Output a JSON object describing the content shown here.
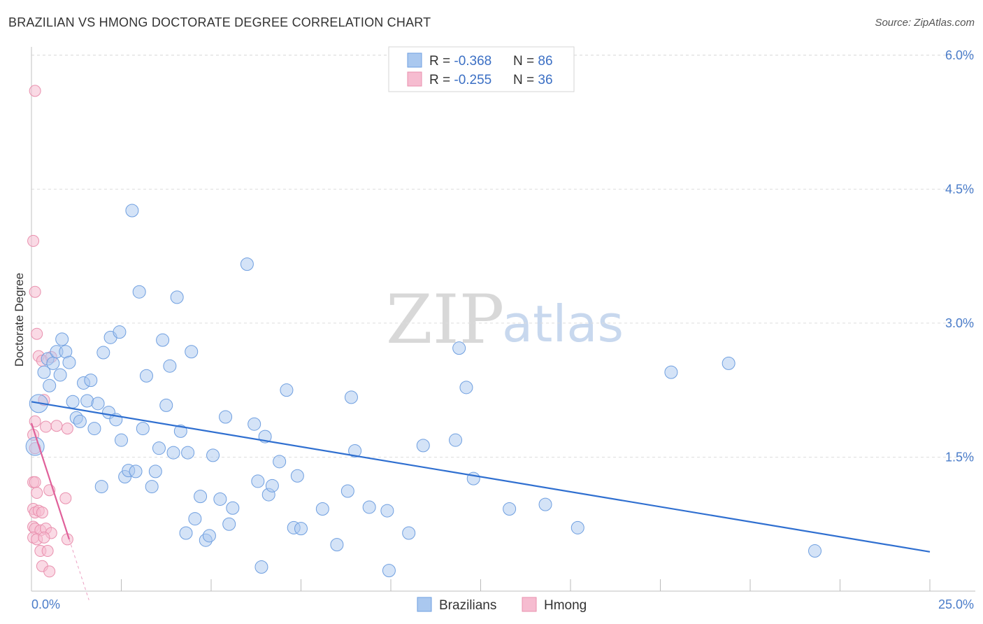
{
  "header": {
    "title": "BRAZILIAN VS HMONG DOCTORATE DEGREE CORRELATION CHART",
    "source": "Source: ZipAtlas.com"
  },
  "watermark": {
    "zip": "ZIP",
    "atlas": "atlas"
  },
  "legend": {
    "brazilians": {
      "r_label": "R = ",
      "r_value": "-0.368",
      "n_label": "N = ",
      "n_value": "86"
    },
    "hmong": {
      "r_label": "R = ",
      "r_value": "-0.255",
      "n_label": "N = ",
      "n_value": "36"
    }
  },
  "bottom_legend": {
    "brazilians": "Brazilians",
    "hmong": "Hmong"
  },
  "colors": {
    "blue_fill": "#aac8ef",
    "blue_stroke": "#6f9fe0",
    "blue_line": "#2f6fd0",
    "pink_fill": "#f6bcd0",
    "pink_stroke": "#e990ae",
    "pink_line": "#e0609a",
    "grid": "#dddddd",
    "axis_text": "#4a7cc9"
  },
  "chart_data": {
    "type": "scatter",
    "title": "BRAZILIAN VS HMONG DOCTORATE DEGREE CORRELATION CHART",
    "xlabel": "",
    "ylabel": "Doctorate Degree",
    "xlim": [
      0,
      25
    ],
    "ylim": [
      0,
      6.2
    ],
    "x_tick_labels": [
      "0.0%",
      "25.0%"
    ],
    "y_ticks": [
      1.5,
      3.0,
      4.5,
      6.0
    ],
    "y_tick_labels": [
      "1.5%",
      "3.0%",
      "4.5%",
      "6.0%"
    ],
    "series": [
      {
        "name": "Brazilians",
        "r": -0.368,
        "n": 86,
        "trend": {
          "x": [
            0,
            25
          ],
          "y": [
            2.12,
            0.44
          ]
        },
        "points": [
          [
            0.1,
            1.62
          ],
          [
            0.2,
            2.1
          ],
          [
            0.35,
            2.45
          ],
          [
            0.45,
            2.6
          ],
          [
            0.5,
            2.3
          ],
          [
            0.6,
            2.55
          ],
          [
            0.7,
            2.68
          ],
          [
            0.8,
            2.42
          ],
          [
            0.85,
            2.82
          ],
          [
            0.95,
            2.68
          ],
          [
            1.05,
            2.56
          ],
          [
            1.15,
            2.12
          ],
          [
            1.25,
            1.94
          ],
          [
            1.35,
            1.9
          ],
          [
            1.45,
            2.33
          ],
          [
            1.55,
            2.13
          ],
          [
            1.65,
            2.36
          ],
          [
            1.75,
            1.82
          ],
          [
            1.85,
            2.1
          ],
          [
            1.95,
            1.17
          ],
          [
            2.0,
            2.67
          ],
          [
            2.15,
            2.0
          ],
          [
            2.2,
            2.84
          ],
          [
            2.35,
            1.92
          ],
          [
            2.45,
            2.9
          ],
          [
            2.5,
            1.69
          ],
          [
            2.6,
            1.28
          ],
          [
            2.7,
            1.35
          ],
          [
            2.8,
            4.26
          ],
          [
            2.9,
            1.34
          ],
          [
            3.0,
            3.35
          ],
          [
            3.1,
            1.82
          ],
          [
            3.2,
            2.41
          ],
          [
            3.35,
            1.17
          ],
          [
            3.45,
            1.34
          ],
          [
            3.55,
            1.6
          ],
          [
            3.65,
            2.81
          ],
          [
            3.75,
            2.08
          ],
          [
            3.85,
            2.52
          ],
          [
            3.95,
            1.55
          ],
          [
            4.05,
            3.29
          ],
          [
            4.15,
            1.79
          ],
          [
            4.3,
            0.65
          ],
          [
            4.35,
            1.55
          ],
          [
            4.45,
            2.68
          ],
          [
            4.55,
            0.81
          ],
          [
            4.7,
            1.06
          ],
          [
            4.85,
            0.57
          ],
          [
            4.95,
            0.62
          ],
          [
            5.05,
            1.52
          ],
          [
            5.25,
            1.03
          ],
          [
            5.5,
            0.75
          ],
          [
            5.6,
            0.93
          ],
          [
            5.4,
            1.95
          ],
          [
            6.0,
            3.66
          ],
          [
            6.2,
            1.87
          ],
          [
            6.3,
            1.23
          ],
          [
            6.4,
            0.27
          ],
          [
            6.5,
            1.73
          ],
          [
            6.6,
            1.08
          ],
          [
            6.7,
            1.18
          ],
          [
            6.9,
            1.45
          ],
          [
            7.1,
            2.25
          ],
          [
            7.3,
            0.71
          ],
          [
            7.4,
            1.29
          ],
          [
            7.5,
            0.7
          ],
          [
            8.1,
            0.92
          ],
          [
            8.5,
            0.52
          ],
          [
            8.8,
            1.12
          ],
          [
            8.9,
            2.17
          ],
          [
            9.0,
            1.57
          ],
          [
            9.4,
            0.94
          ],
          [
            9.9,
            0.9
          ],
          [
            9.95,
            0.23
          ],
          [
            10.5,
            0.65
          ],
          [
            10.9,
            1.63
          ],
          [
            11.8,
            1.69
          ],
          [
            11.9,
            2.72
          ],
          [
            12.1,
            2.28
          ],
          [
            12.3,
            1.26
          ],
          [
            13.3,
            0.92
          ],
          [
            14.3,
            0.97
          ],
          [
            15.2,
            0.71
          ],
          [
            17.8,
            2.45
          ],
          [
            19.4,
            2.55
          ],
          [
            21.8,
            0.45
          ]
        ]
      },
      {
        "name": "Hmong",
        "r": -0.255,
        "n": 36,
        "trend": {
          "x": [
            0,
            1.05
          ],
          "y": [
            1.88,
            0.58
          ]
        },
        "trend_ext": {
          "x": [
            1.05,
            1.6
          ],
          "y": [
            0.58,
            -0.1
          ]
        },
        "points": [
          [
            0.1,
            5.6
          ],
          [
            0.05,
            3.92
          ],
          [
            0.1,
            3.35
          ],
          [
            0.15,
            2.88
          ],
          [
            0.2,
            2.63
          ],
          [
            0.3,
            2.58
          ],
          [
            0.55,
            2.62
          ],
          [
            0.35,
            2.14
          ],
          [
            0.1,
            1.9
          ],
          [
            0.4,
            1.84
          ],
          [
            0.7,
            1.85
          ],
          [
            0.05,
            1.75
          ],
          [
            1.0,
            1.82
          ],
          [
            0.1,
            1.6
          ],
          [
            0.05,
            1.22
          ],
          [
            0.1,
            1.22
          ],
          [
            0.15,
            1.1
          ],
          [
            0.5,
            1.13
          ],
          [
            0.95,
            1.04
          ],
          [
            0.05,
            0.92
          ],
          [
            0.1,
            0.88
          ],
          [
            0.2,
            0.9
          ],
          [
            0.3,
            0.88
          ],
          [
            0.05,
            0.72
          ],
          [
            0.1,
            0.7
          ],
          [
            0.25,
            0.68
          ],
          [
            0.4,
            0.7
          ],
          [
            0.55,
            0.65
          ],
          [
            0.05,
            0.6
          ],
          [
            0.15,
            0.58
          ],
          [
            0.35,
            0.6
          ],
          [
            0.25,
            0.45
          ],
          [
            0.45,
            0.45
          ],
          [
            0.3,
            0.28
          ],
          [
            0.5,
            0.22
          ],
          [
            1.0,
            0.58
          ]
        ]
      }
    ]
  }
}
